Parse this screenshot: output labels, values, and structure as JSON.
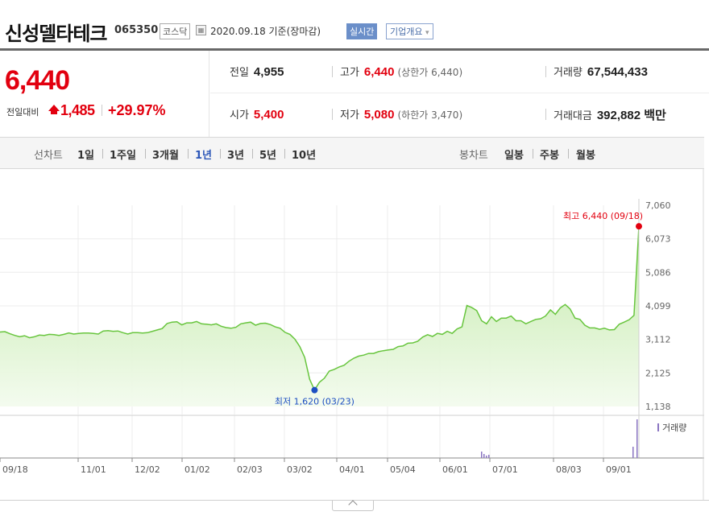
{
  "header": {
    "name": "신성델타테크",
    "code": "065350",
    "market": "코스닥",
    "date": "2020.09.18 기준(장마감)",
    "live": "실시간",
    "overview": "기업개요",
    "overview_arrow": "▾"
  },
  "summary": {
    "price": "6,440",
    "change_label": "전일대비",
    "change": "1,485",
    "change_pct": "+29.97%",
    "prev_close_label": "전일",
    "prev_close": "4,955",
    "high_label": "고가",
    "high": "6,440",
    "upper_limit": "(상한가 6,440)",
    "volume_label": "거래량",
    "volume": "67,544,433",
    "open_label": "시가",
    "open": "5,400",
    "low_label": "저가",
    "low": "5,080",
    "lower_limit": "(하한가 3,470)",
    "amount_label": "거래대금",
    "amount": "392,882 백만"
  },
  "tabs": {
    "line_label": "선차트",
    "line_periods": [
      "1일",
      "1주일",
      "3개월",
      "1년",
      "3년",
      "5년",
      "10년"
    ],
    "active_period": "1년",
    "candle_label": "봉차트",
    "candle_periods": [
      "일봉",
      "주봉",
      "월봉"
    ]
  },
  "colors": {
    "up": "#e2000f",
    "line": "#68c53e",
    "fill_top": "#bfe8a4",
    "low_dot": "#1d4fc2",
    "volume": "#8a74c2"
  },
  "chart_data": {
    "type": "area",
    "title": "",
    "y_ticks": [
      "7,060",
      "6,073",
      "5,086",
      "4,099",
      "3,112",
      "2,125",
      "1,138"
    ],
    "ylim": [
      1138,
      7060
    ],
    "x_ticks": [
      "09/18",
      "11/01",
      "12/02",
      "01/02",
      "02/03",
      "03/02",
      "04/01",
      "05/04",
      "06/01",
      "07/01",
      "08/03",
      "09/01"
    ],
    "grid": true,
    "series": [
      {
        "values": [
          3330,
          3340,
          3280,
          3230,
          3190,
          3220,
          3160,
          3190,
          3240,
          3230,
          3260,
          3250,
          3230,
          3260,
          3300,
          3270,
          3290,
          3300,
          3300,
          3290,
          3270,
          3360,
          3370,
          3350,
          3360,
          3310,
          3270,
          3310,
          3310,
          3300,
          3310,
          3350,
          3390,
          3430,
          3580,
          3620,
          3630,
          3540,
          3600,
          3600,
          3640,
          3570,
          3560,
          3540,
          3570,
          3500,
          3460,
          3440,
          3470,
          3570,
          3600,
          3620,
          3530,
          3580,
          3590,
          3550,
          3480,
          3440,
          3320,
          3260,
          3120,
          2900,
          2580,
          1940,
          1620,
          1850,
          1970,
          2180,
          2230,
          2300,
          2350,
          2470,
          2560,
          2620,
          2650,
          2700,
          2700,
          2750,
          2780,
          2800,
          2820,
          2900,
          2920,
          3000,
          3010,
          3060,
          3180,
          3250,
          3200,
          3290,
          3260,
          3350,
          3290,
          3420,
          3480,
          4110,
          4050,
          3960,
          3660,
          3570,
          3780,
          3640,
          3740,
          3740,
          3800,
          3660,
          3660,
          3570,
          3640,
          3700,
          3720,
          3800,
          3980,
          3850,
          4040,
          4140,
          4010,
          3740,
          3700,
          3530,
          3450,
          3450,
          3410,
          3440,
          3390,
          3400,
          3560,
          3620,
          3690,
          3820,
          6440
        ],
        "high": "최고 6,440 (09/18)",
        "low": "최저 1,620 (03/23)"
      }
    ],
    "volume_label": "거래량"
  }
}
